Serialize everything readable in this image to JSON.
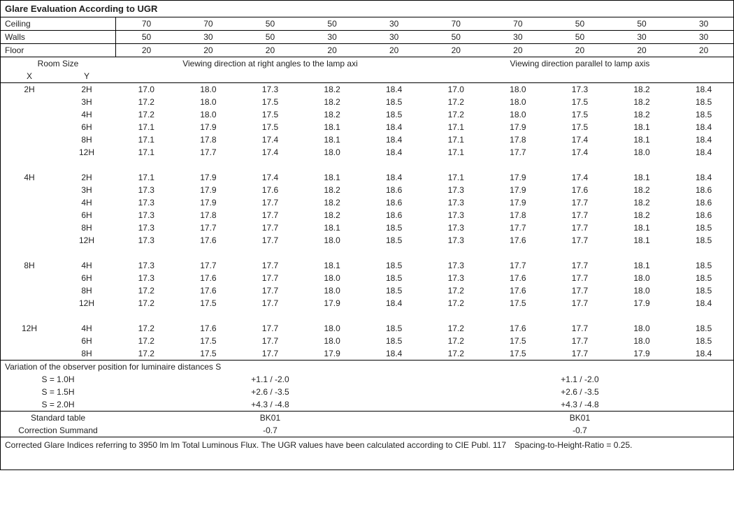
{
  "title": "Glare Evaluation According to UGR",
  "headerRows": [
    {
      "label": "Ceiling",
      "vals": [
        "70",
        "70",
        "50",
        "50",
        "30",
        "70",
        "70",
        "50",
        "50",
        "30"
      ]
    },
    {
      "label": "Walls",
      "vals": [
        "50",
        "30",
        "50",
        "30",
        "30",
        "50",
        "30",
        "50",
        "30",
        "30"
      ]
    },
    {
      "label": "Floor",
      "vals": [
        "20",
        "20",
        "20",
        "20",
        "20",
        "20",
        "20",
        "20",
        "20",
        "20"
      ]
    }
  ],
  "roomSizeLabel": "Room Size",
  "xLabel": "X",
  "yLabel": "Y",
  "viewLeft": "Viewing direction at right angles to the lamp axi",
  "viewRight": "Viewing direction parallel to lamp axis",
  "groups": [
    {
      "x": "2H",
      "rows": [
        {
          "y": "2H",
          "v": [
            "17.0",
            "18.0",
            "17.3",
            "18.2",
            "18.4",
            "17.0",
            "18.0",
            "17.3",
            "18.2",
            "18.4"
          ]
        },
        {
          "y": "3H",
          "v": [
            "17.2",
            "18.0",
            "17.5",
            "18.2",
            "18.5",
            "17.2",
            "18.0",
            "17.5",
            "18.2",
            "18.5"
          ]
        },
        {
          "y": "4H",
          "v": [
            "17.2",
            "18.0",
            "17.5",
            "18.2",
            "18.5",
            "17.2",
            "18.0",
            "17.5",
            "18.2",
            "18.5"
          ]
        },
        {
          "y": "6H",
          "v": [
            "17.1",
            "17.9",
            "17.5",
            "18.1",
            "18.4",
            "17.1",
            "17.9",
            "17.5",
            "18.1",
            "18.4"
          ]
        },
        {
          "y": "8H",
          "v": [
            "17.1",
            "17.8",
            "17.4",
            "18.1",
            "18.4",
            "17.1",
            "17.8",
            "17.4",
            "18.1",
            "18.4"
          ]
        },
        {
          "y": "12H",
          "v": [
            "17.1",
            "17.7",
            "17.4",
            "18.0",
            "18.4",
            "17.1",
            "17.7",
            "17.4",
            "18.0",
            "18.4"
          ]
        }
      ]
    },
    {
      "x": "4H",
      "rows": [
        {
          "y": "2H",
          "v": [
            "17.1",
            "17.9",
            "17.4",
            "18.1",
            "18.4",
            "17.1",
            "17.9",
            "17.4",
            "18.1",
            "18.4"
          ]
        },
        {
          "y": "3H",
          "v": [
            "17.3",
            "17.9",
            "17.6",
            "18.2",
            "18.6",
            "17.3",
            "17.9",
            "17.6",
            "18.2",
            "18.6"
          ]
        },
        {
          "y": "4H",
          "v": [
            "17.3",
            "17.9",
            "17.7",
            "18.2",
            "18.6",
            "17.3",
            "17.9",
            "17.7",
            "18.2",
            "18.6"
          ]
        },
        {
          "y": "6H",
          "v": [
            "17.3",
            "17.8",
            "17.7",
            "18.2",
            "18.6",
            "17.3",
            "17.8",
            "17.7",
            "18.2",
            "18.6"
          ]
        },
        {
          "y": "8H",
          "v": [
            "17.3",
            "17.7",
            "17.7",
            "18.1",
            "18.5",
            "17.3",
            "17.7",
            "17.7",
            "18.1",
            "18.5"
          ]
        },
        {
          "y": "12H",
          "v": [
            "17.3",
            "17.6",
            "17.7",
            "18.0",
            "18.5",
            "17.3",
            "17.6",
            "17.7",
            "18.1",
            "18.5"
          ]
        }
      ]
    },
    {
      "x": "8H",
      "rows": [
        {
          "y": "4H",
          "v": [
            "17.3",
            "17.7",
            "17.7",
            "18.1",
            "18.5",
            "17.3",
            "17.7",
            "17.7",
            "18.1",
            "18.5"
          ]
        },
        {
          "y": "6H",
          "v": [
            "17.3",
            "17.6",
            "17.7",
            "18.0",
            "18.5",
            "17.3",
            "17.6",
            "17.7",
            "18.0",
            "18.5"
          ]
        },
        {
          "y": "8H",
          "v": [
            "17.2",
            "17.6",
            "17.7",
            "18.0",
            "18.5",
            "17.2",
            "17.6",
            "17.7",
            "18.0",
            "18.5"
          ]
        },
        {
          "y": "12H",
          "v": [
            "17.2",
            "17.5",
            "17.7",
            "17.9",
            "18.4",
            "17.2",
            "17.5",
            "17.7",
            "17.9",
            "18.4"
          ]
        }
      ]
    },
    {
      "x": "12H",
      "rows": [
        {
          "y": "4H",
          "v": [
            "17.2",
            "17.6",
            "17.7",
            "18.0",
            "18.5",
            "17.2",
            "17.6",
            "17.7",
            "18.0",
            "18.5"
          ]
        },
        {
          "y": "6H",
          "v": [
            "17.2",
            "17.5",
            "17.7",
            "18.0",
            "18.5",
            "17.2",
            "17.5",
            "17.7",
            "18.0",
            "18.5"
          ]
        },
        {
          "y": "8H",
          "v": [
            "17.2",
            "17.5",
            "17.7",
            "17.9",
            "18.4",
            "17.2",
            "17.5",
            "17.7",
            "17.9",
            "18.4"
          ]
        }
      ]
    }
  ],
  "variationLabel": "Variation of the observer position for luminaire distances S",
  "sRows": [
    {
      "s": "S = 1.0H",
      "l": "+1.1 / -2.0",
      "r": "+1.1 / -2.0"
    },
    {
      "s": "S = 1.5H",
      "l": "+2.6 / -3.5",
      "r": "+2.6 / -3.5"
    },
    {
      "s": "S = 2.0H",
      "l": "+4.3 / -4.8",
      "r": "+4.3 / -4.8"
    }
  ],
  "stdTable": "Standard table",
  "stdL": "BK01",
  "stdR": "BK01",
  "corrLabel": "Correction Summand",
  "corrL": "-0.7",
  "corrR": "-0.7",
  "footer": "Corrected Glare Indices referring to 3950 lm lm Total Luminous Flux. The UGR values have been calculated according to CIE Publ. 117 Spacing-to-Height-Ratio = 0.25."
}
